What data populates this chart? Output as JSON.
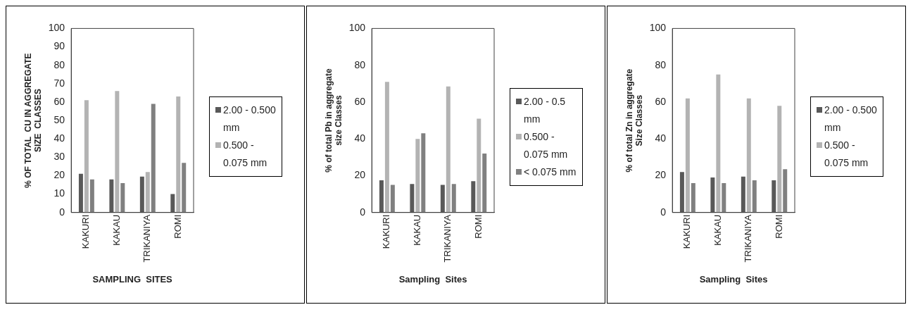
{
  "chart_data": [
    {
      "type": "bar",
      "xlabel": "SAMPLING  SITES",
      "ylabel": "% OF TOTAL  CU IN AGGREGATE SIZE  CLASSES",
      "categories": [
        "KAKURI",
        "KAKAU",
        "TRIKANIYA",
        "ROMI"
      ],
      "series": [
        {
          "name": "2.00 - 0.500 mm",
          "color": "#595959",
          "values": [
            21,
            18,
            19.5,
            10
          ]
        },
        {
          "name": "0.500 - 0.075 mm",
          "color": "#b3b3b3",
          "values": [
            61,
            66,
            22,
            63
          ]
        },
        {
          "color": "#808080",
          "values": [
            18,
            16,
            59,
            27
          ]
        }
      ],
      "ylim": [
        0,
        100
      ],
      "yticks": [
        0,
        10,
        20,
        30,
        40,
        50,
        60,
        70,
        80,
        90,
        100
      ],
      "grid": false,
      "legend": "right"
    },
    {
      "type": "bar",
      "xlabel": "Sampling  Sites",
      "ylabel": "% of total Pb in aggregate size Classes",
      "categories": [
        "KAKURI",
        "KAKAU",
        "TRIKANIYA",
        "ROMI"
      ],
      "series": [
        {
          "name": "2.00 - 0.5 mm",
          "color": "#595959",
          "values": [
            17.5,
            15.5,
            15,
            17
          ]
        },
        {
          "name": "0.500 - 0.075 mm",
          "color": "#b3b3b3",
          "values": [
            71,
            40,
            68.5,
            51
          ]
        },
        {
          "name": "< 0.075 mm",
          "color": "#808080",
          "values": [
            15,
            43,
            15.5,
            32
          ]
        }
      ],
      "ylim": [
        0,
        100
      ],
      "yticks": [
        0,
        20,
        40,
        60,
        80,
        100
      ],
      "grid": false,
      "legend": "right"
    },
    {
      "type": "bar",
      "xlabel": "Sampling  Sites",
      "ylabel": "% of total Zn in aggregate Size Classes",
      "categories": [
        "KAKURI",
        "KAKAU",
        "TRIKANIYA",
        "ROMI"
      ],
      "series": [
        {
          "name": "2.00 - 0.500 mm",
          "color": "#595959",
          "values": [
            22,
            19,
            19.5,
            17.5
          ]
        },
        {
          "name": "0.500 - 0.075 mm",
          "color": "#b3b3b3",
          "values": [
            62,
            75,
            62,
            58
          ]
        },
        {
          "color": "#808080",
          "values": [
            16,
            16,
            17.5,
            23.5
          ]
        }
      ],
      "ylim": [
        0,
        100
      ],
      "yticks": [
        0,
        20,
        40,
        60,
        80,
        100
      ],
      "grid": false,
      "legend": "right"
    }
  ]
}
